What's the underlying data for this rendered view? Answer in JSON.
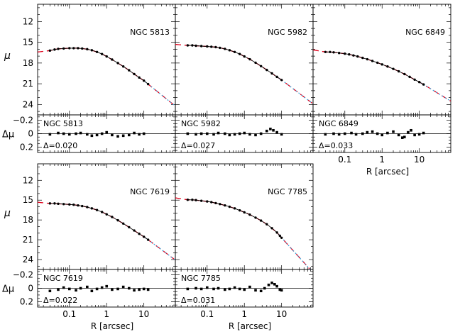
{
  "chart_data": [
    {
      "type": "scatter",
      "galaxy": "NGC 5813",
      "delta_label": "Δ=0.020",
      "profile": {
        "x": [
          0.03,
          0.04,
          0.05,
          0.07,
          0.1,
          0.13,
          0.17,
          0.22,
          0.3,
          0.4,
          0.55,
          0.75,
          1,
          1.4,
          2,
          2.8,
          4,
          5.5,
          7.5,
          10,
          13
        ],
        "y": [
          16.2,
          16.05,
          15.95,
          15.9,
          15.85,
          15.85,
          15.85,
          15.9,
          16,
          16.15,
          16.4,
          16.7,
          17.05,
          17.5,
          18,
          18.5,
          19.05,
          19.6,
          20.1,
          20.55,
          21.05
        ]
      },
      "residuals": {
        "x": [
          0.03,
          0.05,
          0.07,
          0.1,
          0.15,
          0.2,
          0.3,
          0.4,
          0.55,
          0.75,
          1,
          1.4,
          2,
          2.8,
          4,
          5.5,
          7.5,
          10
        ],
        "y": [
          0.01,
          -0.01,
          0,
          0.01,
          0,
          -0.01,
          0.01,
          0.03,
          0.02,
          0,
          -0.02,
          0.02,
          0.04,
          0.03,
          0.02,
          -0.01,
          0.01,
          0
        ]
      }
    },
    {
      "type": "scatter",
      "galaxy": "NGC 5982",
      "delta_label": "Δ=0.027",
      "profile": {
        "x": [
          0.03,
          0.04,
          0.05,
          0.07,
          0.1,
          0.13,
          0.17,
          0.22,
          0.3,
          0.4,
          0.55,
          0.75,
          1,
          1.4,
          2,
          2.8,
          4,
          5.5,
          7.5,
          10
        ],
        "y": [
          15.45,
          15.45,
          15.5,
          15.55,
          15.6,
          15.65,
          15.7,
          15.8,
          15.95,
          16.15,
          16.4,
          16.7,
          17.05,
          17.45,
          17.95,
          18.45,
          19,
          19.5,
          20,
          20.45
        ]
      },
      "residuals": {
        "x": [
          0.03,
          0.05,
          0.07,
          0.1,
          0.15,
          0.2,
          0.3,
          0.4,
          0.55,
          0.75,
          1,
          1.4,
          2,
          2.8,
          4,
          5,
          6,
          7.5,
          10
        ],
        "y": [
          0,
          0.01,
          0,
          0,
          0.01,
          -0.01,
          0,
          0.02,
          0.01,
          0,
          -0.01,
          0.01,
          0.02,
          0,
          -0.04,
          -0.07,
          -0.05,
          -0.02,
          0.01
        ]
      }
    },
    {
      "type": "scatter",
      "galaxy": "NGC 6849",
      "delta_label": "Δ=0.033",
      "profile": {
        "x": [
          0.03,
          0.04,
          0.05,
          0.07,
          0.1,
          0.13,
          0.17,
          0.22,
          0.3,
          0.4,
          0.55,
          0.75,
          1,
          1.4,
          2,
          2.8,
          4,
          5.5,
          7.5,
          10,
          13
        ],
        "y": [
          16.4,
          16.4,
          16.45,
          16.55,
          16.65,
          16.75,
          16.9,
          17.05,
          17.25,
          17.45,
          17.7,
          17.95,
          18.2,
          18.5,
          18.85,
          19.2,
          19.6,
          20,
          20.4,
          20.75,
          21.1
        ]
      },
      "residuals": {
        "x": [
          0.03,
          0.05,
          0.07,
          0.1,
          0.15,
          0.2,
          0.3,
          0.4,
          0.55,
          0.75,
          1,
          1.4,
          2,
          2.8,
          3.5,
          4,
          5,
          6,
          7.5,
          10,
          13
        ],
        "y": [
          0.01,
          0,
          0.01,
          0,
          -0.01,
          0.01,
          0,
          -0.02,
          -0.03,
          0,
          0.02,
          -0.01,
          -0.03,
          0.02,
          0.06,
          0.05,
          -0.02,
          -0.05,
          0.02,
          0.01,
          -0.01
        ]
      }
    },
    {
      "type": "scatter",
      "galaxy": "NGC 7619",
      "delta_label": "Δ=0.022",
      "profile": {
        "x": [
          0.03,
          0.04,
          0.05,
          0.07,
          0.1,
          0.13,
          0.17,
          0.22,
          0.3,
          0.4,
          0.55,
          0.75,
          1,
          1.4,
          2,
          2.8,
          4,
          5.5,
          7.5,
          10,
          13
        ],
        "y": [
          15.5,
          15.5,
          15.55,
          15.6,
          15.65,
          15.7,
          15.8,
          15.9,
          16.05,
          16.25,
          16.5,
          16.8,
          17.15,
          17.55,
          18.05,
          18.55,
          19.1,
          19.6,
          20.1,
          20.55,
          21
        ]
      },
      "residuals": {
        "x": [
          0.03,
          0.05,
          0.07,
          0.1,
          0.15,
          0.2,
          0.3,
          0.4,
          0.55,
          0.75,
          1,
          1.4,
          2,
          2.8,
          4,
          5.5,
          7.5,
          10,
          13
        ],
        "y": [
          0.04,
          0.02,
          -0.01,
          0.01,
          0.03,
          0,
          -0.02,
          0.04,
          0.01,
          -0.01,
          -0.03,
          0.02,
          0.01,
          -0.02,
          0,
          0.03,
          0.02,
          0.01,
          0.02
        ]
      }
    },
    {
      "type": "scatter",
      "galaxy": "NGC 7785",
      "delta_label": "Δ=0.031",
      "profile": {
        "x": [
          0.03,
          0.04,
          0.05,
          0.07,
          0.1,
          0.13,
          0.17,
          0.22,
          0.3,
          0.4,
          0.55,
          0.75,
          1,
          1.4,
          2,
          2.8,
          4,
          5.5,
          7.5,
          9,
          10
        ],
        "y": [
          14.95,
          14.95,
          15,
          15.1,
          15.2,
          15.3,
          15.45,
          15.6,
          15.8,
          16,
          16.25,
          16.55,
          16.85,
          17.2,
          17.65,
          18.1,
          18.65,
          19.25,
          19.9,
          20.4,
          20.7
        ]
      },
      "residuals": {
        "x": [
          0.03,
          0.05,
          0.07,
          0.1,
          0.15,
          0.2,
          0.3,
          0.4,
          0.55,
          0.75,
          1,
          1.4,
          2,
          2.8,
          3.5,
          4.5,
          5.5,
          6.5,
          7.5,
          9,
          10
        ],
        "y": [
          0.01,
          0,
          0.01,
          -0.01,
          0.01,
          0,
          0.02,
          0.01,
          -0.01,
          0.01,
          0.02,
          -0.02,
          0.03,
          0.04,
          0,
          -0.05,
          -0.08,
          -0.06,
          -0.03,
          0.02,
          0.03
        ]
      }
    }
  ],
  "axes": {
    "profile_y_ticks": [
      "12",
      "15",
      "18",
      "21",
      "24"
    ],
    "residual_y_ticks": [
      "−0.2",
      "0",
      "0.2"
    ],
    "x_ticks": [
      "0.1",
      "1",
      "10"
    ],
    "x_label": "R [arcsec]",
    "profile_y_label": "μ",
    "residual_y_label": "Δμ"
  }
}
